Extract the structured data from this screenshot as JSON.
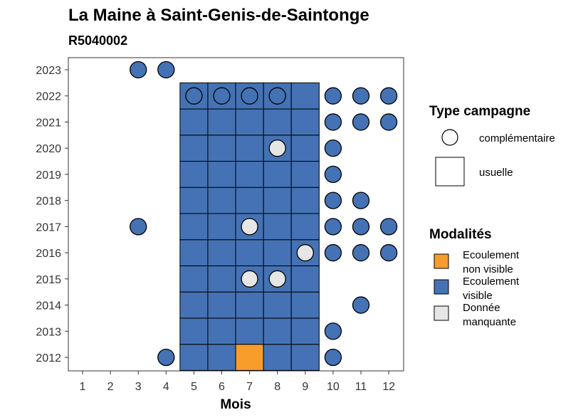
{
  "title": "La Maine à Saint-Genis-de-Saintonge",
  "subtitle": "R5040002",
  "chart_data": {
    "type": "heatmap",
    "title": "La Maine à Saint-Genis-de-Saintonge",
    "subtitle": "R5040002",
    "xlabel": "Mois",
    "ylabel": "",
    "x_categories": [
      "1",
      "2",
      "3",
      "4",
      "5",
      "6",
      "7",
      "8",
      "9",
      "10",
      "11",
      "12"
    ],
    "y_categories": [
      "2012",
      "2013",
      "2014",
      "2015",
      "2016",
      "2017",
      "2018",
      "2019",
      "2020",
      "2021",
      "2022",
      "2023"
    ],
    "grid": false,
    "legend_position": "right",
    "legend_shape": {
      "title": "Type campagne",
      "entries": [
        {
          "key": "complementaire",
          "label": "complémentaire",
          "shape": "circle"
        },
        {
          "key": "usuelle",
          "label": "usuelle",
          "shape": "square"
        }
      ]
    },
    "legend_fill": {
      "title": "Modalités",
      "entries": [
        {
          "key": "non_visible",
          "label": [
            "Ecoulement",
            "non visible"
          ],
          "color": "#F89C2C"
        },
        {
          "key": "visible",
          "label": [
            "Ecoulement",
            "visible"
          ],
          "color": "#4472B4"
        },
        {
          "key": "manquante",
          "label": [
            "Donnée",
            "manquante"
          ],
          "color": "#E6E6E6"
        }
      ]
    },
    "points": [
      {
        "x": 4,
        "y": 2012,
        "type": "complementaire",
        "modalite": "visible"
      },
      {
        "x": 5,
        "y": 2012,
        "type": "usuelle",
        "modalite": "visible"
      },
      {
        "x": 6,
        "y": 2012,
        "type": "usuelle",
        "modalite": "visible"
      },
      {
        "x": 7,
        "y": 2012,
        "type": "usuelle",
        "modalite": "non_visible"
      },
      {
        "x": 8,
        "y": 2012,
        "type": "usuelle",
        "modalite": "visible"
      },
      {
        "x": 9,
        "y": 2012,
        "type": "usuelle",
        "modalite": "visible"
      },
      {
        "x": 10,
        "y": 2012,
        "type": "complementaire",
        "modalite": "visible"
      },
      {
        "x": 5,
        "y": 2013,
        "type": "usuelle",
        "modalite": "visible"
      },
      {
        "x": 6,
        "y": 2013,
        "type": "usuelle",
        "modalite": "visible"
      },
      {
        "x": 7,
        "y": 2013,
        "type": "usuelle",
        "modalite": "visible"
      },
      {
        "x": 8,
        "y": 2013,
        "type": "usuelle",
        "modalite": "visible"
      },
      {
        "x": 9,
        "y": 2013,
        "type": "usuelle",
        "modalite": "visible"
      },
      {
        "x": 10,
        "y": 2013,
        "type": "complementaire",
        "modalite": "visible"
      },
      {
        "x": 5,
        "y": 2014,
        "type": "usuelle",
        "modalite": "visible"
      },
      {
        "x": 6,
        "y": 2014,
        "type": "usuelle",
        "modalite": "visible"
      },
      {
        "x": 7,
        "y": 2014,
        "type": "usuelle",
        "modalite": "visible"
      },
      {
        "x": 8,
        "y": 2014,
        "type": "usuelle",
        "modalite": "visible"
      },
      {
        "x": 9,
        "y": 2014,
        "type": "usuelle",
        "modalite": "visible"
      },
      {
        "x": 11,
        "y": 2014,
        "type": "complementaire",
        "modalite": "visible"
      },
      {
        "x": 5,
        "y": 2015,
        "type": "usuelle",
        "modalite": "visible"
      },
      {
        "x": 6,
        "y": 2015,
        "type": "usuelle",
        "modalite": "visible"
      },
      {
        "x": 7,
        "y": 2015,
        "type": "usuelle",
        "modalite": "visible"
      },
      {
        "x": 8,
        "y": 2015,
        "type": "usuelle",
        "modalite": "visible"
      },
      {
        "x": 9,
        "y": 2015,
        "type": "usuelle",
        "modalite": "visible"
      },
      {
        "x": 7,
        "y": 2015,
        "type": "complementaire",
        "modalite": "manquante"
      },
      {
        "x": 8,
        "y": 2015,
        "type": "complementaire",
        "modalite": "manquante"
      },
      {
        "x": 5,
        "y": 2016,
        "type": "usuelle",
        "modalite": "visible"
      },
      {
        "x": 6,
        "y": 2016,
        "type": "usuelle",
        "modalite": "visible"
      },
      {
        "x": 7,
        "y": 2016,
        "type": "usuelle",
        "modalite": "visible"
      },
      {
        "x": 8,
        "y": 2016,
        "type": "usuelle",
        "modalite": "visible"
      },
      {
        "x": 9,
        "y": 2016,
        "type": "usuelle",
        "modalite": "visible"
      },
      {
        "x": 9,
        "y": 2016,
        "type": "complementaire",
        "modalite": "manquante"
      },
      {
        "x": 10,
        "y": 2016,
        "type": "complementaire",
        "modalite": "visible"
      },
      {
        "x": 11,
        "y": 2016,
        "type": "complementaire",
        "modalite": "visible"
      },
      {
        "x": 12,
        "y": 2016,
        "type": "complementaire",
        "modalite": "visible"
      },
      {
        "x": 3,
        "y": 2017,
        "type": "complementaire",
        "modalite": "visible"
      },
      {
        "x": 5,
        "y": 2017,
        "type": "usuelle",
        "modalite": "visible"
      },
      {
        "x": 6,
        "y": 2017,
        "type": "usuelle",
        "modalite": "visible"
      },
      {
        "x": 7,
        "y": 2017,
        "type": "usuelle",
        "modalite": "visible"
      },
      {
        "x": 8,
        "y": 2017,
        "type": "usuelle",
        "modalite": "visible"
      },
      {
        "x": 9,
        "y": 2017,
        "type": "usuelle",
        "modalite": "visible"
      },
      {
        "x": 7,
        "y": 2017,
        "type": "complementaire",
        "modalite": "manquante"
      },
      {
        "x": 10,
        "y": 2017,
        "type": "complementaire",
        "modalite": "visible"
      },
      {
        "x": 11,
        "y": 2017,
        "type": "complementaire",
        "modalite": "visible"
      },
      {
        "x": 12,
        "y": 2017,
        "type": "complementaire",
        "modalite": "visible"
      },
      {
        "x": 5,
        "y": 2018,
        "type": "usuelle",
        "modalite": "visible"
      },
      {
        "x": 6,
        "y": 2018,
        "type": "usuelle",
        "modalite": "visible"
      },
      {
        "x": 7,
        "y": 2018,
        "type": "usuelle",
        "modalite": "visible"
      },
      {
        "x": 8,
        "y": 2018,
        "type": "usuelle",
        "modalite": "visible"
      },
      {
        "x": 9,
        "y": 2018,
        "type": "usuelle",
        "modalite": "visible"
      },
      {
        "x": 10,
        "y": 2018,
        "type": "complementaire",
        "modalite": "visible"
      },
      {
        "x": 11,
        "y": 2018,
        "type": "complementaire",
        "modalite": "visible"
      },
      {
        "x": 5,
        "y": 2019,
        "type": "usuelle",
        "modalite": "visible"
      },
      {
        "x": 6,
        "y": 2019,
        "type": "usuelle",
        "modalite": "visible"
      },
      {
        "x": 7,
        "y": 2019,
        "type": "usuelle",
        "modalite": "visible"
      },
      {
        "x": 8,
        "y": 2019,
        "type": "usuelle",
        "modalite": "visible"
      },
      {
        "x": 9,
        "y": 2019,
        "type": "usuelle",
        "modalite": "visible"
      },
      {
        "x": 10,
        "y": 2019,
        "type": "complementaire",
        "modalite": "visible"
      },
      {
        "x": 5,
        "y": 2020,
        "type": "usuelle",
        "modalite": "visible"
      },
      {
        "x": 6,
        "y": 2020,
        "type": "usuelle",
        "modalite": "visible"
      },
      {
        "x": 7,
        "y": 2020,
        "type": "usuelle",
        "modalite": "visible"
      },
      {
        "x": 8,
        "y": 2020,
        "type": "usuelle",
        "modalite": "visible"
      },
      {
        "x": 9,
        "y": 2020,
        "type": "usuelle",
        "modalite": "visible"
      },
      {
        "x": 8,
        "y": 2020,
        "type": "complementaire",
        "modalite": "manquante"
      },
      {
        "x": 10,
        "y": 2020,
        "type": "complementaire",
        "modalite": "visible"
      },
      {
        "x": 5,
        "y": 2021,
        "type": "usuelle",
        "modalite": "visible"
      },
      {
        "x": 6,
        "y": 2021,
        "type": "usuelle",
        "modalite": "visible"
      },
      {
        "x": 7,
        "y": 2021,
        "type": "usuelle",
        "modalite": "visible"
      },
      {
        "x": 8,
        "y": 2021,
        "type": "usuelle",
        "modalite": "visible"
      },
      {
        "x": 9,
        "y": 2021,
        "type": "usuelle",
        "modalite": "visible"
      },
      {
        "x": 10,
        "y": 2021,
        "type": "complementaire",
        "modalite": "visible"
      },
      {
        "x": 11,
        "y": 2021,
        "type": "complementaire",
        "modalite": "visible"
      },
      {
        "x": 12,
        "y": 2021,
        "type": "complementaire",
        "modalite": "visible"
      },
      {
        "x": 5,
        "y": 2022,
        "type": "usuelle",
        "modalite": "visible"
      },
      {
        "x": 6,
        "y": 2022,
        "type": "usuelle",
        "modalite": "visible"
      },
      {
        "x": 7,
        "y": 2022,
        "type": "usuelle",
        "modalite": "visible"
      },
      {
        "x": 8,
        "y": 2022,
        "type": "usuelle",
        "modalite": "visible"
      },
      {
        "x": 9,
        "y": 2022,
        "type": "usuelle",
        "modalite": "visible"
      },
      {
        "x": 5,
        "y": 2022,
        "type": "complementaire",
        "modalite": "visible"
      },
      {
        "x": 6,
        "y": 2022,
        "type": "complementaire",
        "modalite": "visible"
      },
      {
        "x": 7,
        "y": 2022,
        "type": "complementaire",
        "modalite": "visible"
      },
      {
        "x": 8,
        "y": 2022,
        "type": "complementaire",
        "modalite": "visible"
      },
      {
        "x": 10,
        "y": 2022,
        "type": "complementaire",
        "modalite": "visible"
      },
      {
        "x": 11,
        "y": 2022,
        "type": "complementaire",
        "modalite": "visible"
      },
      {
        "x": 12,
        "y": 2022,
        "type": "complementaire",
        "modalite": "visible"
      },
      {
        "x": 3,
        "y": 2023,
        "type": "complementaire",
        "modalite": "visible"
      },
      {
        "x": 4,
        "y": 2023,
        "type": "complementaire",
        "modalite": "visible"
      }
    ]
  }
}
